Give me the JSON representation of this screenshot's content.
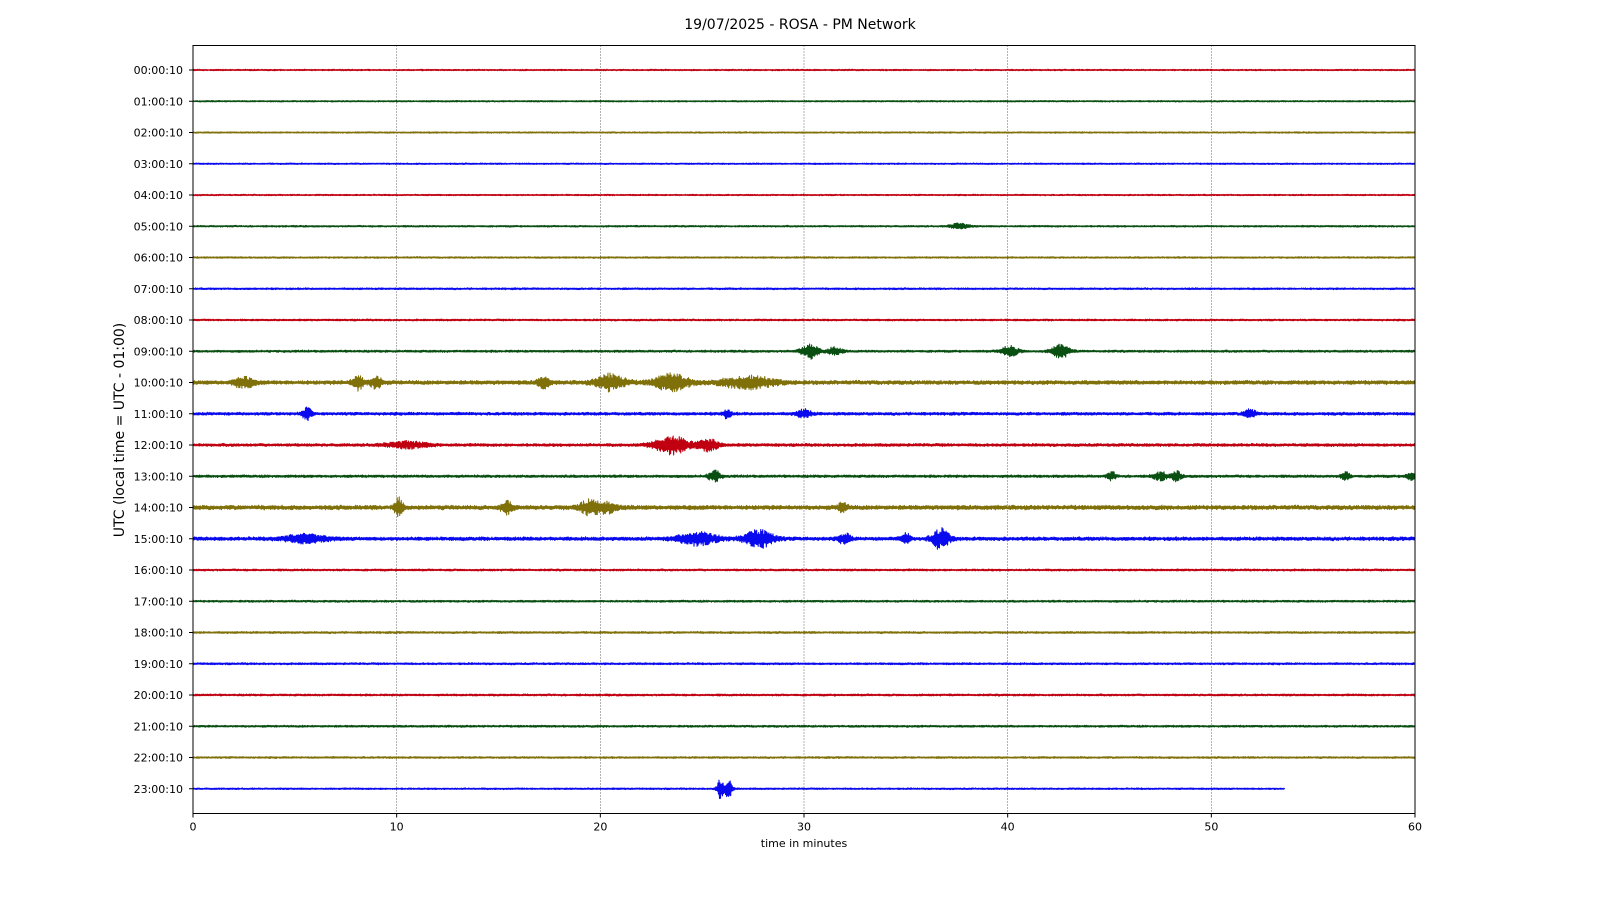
{
  "chart_data": {
    "type": "line",
    "title": "19/07/2025 - ROSA - PM Network",
    "xlabel": "time in minutes",
    "ylabel": "UTC (local time = UTC - 01:00)",
    "xlim": [
      0,
      60
    ],
    "xticks": [
      0,
      10,
      20,
      30,
      40,
      50,
      60
    ],
    "grid": "vertical dotted lines at x ticks",
    "colors": [
      "#c00010",
      "#0a4f12",
      "#80700a",
      "#0a0aee"
    ],
    "rows": [
      {
        "label": "00:00:10",
        "end": 60,
        "noise": 0.8,
        "events": []
      },
      {
        "label": "01:00:10",
        "end": 60,
        "noise": 0.8,
        "events": []
      },
      {
        "label": "02:00:10",
        "end": 60,
        "noise": 0.8,
        "events": []
      },
      {
        "label": "03:00:10",
        "end": 60,
        "noise": 0.8,
        "events": []
      },
      {
        "label": "04:00:10",
        "end": 60,
        "noise": 0.8,
        "events": []
      },
      {
        "label": "05:00:10",
        "end": 60,
        "noise": 0.9,
        "events": [
          {
            "t": 37.6,
            "amp": 3,
            "dur": 0.6
          }
        ]
      },
      {
        "label": "06:00:10",
        "end": 60,
        "noise": 0.9,
        "events": []
      },
      {
        "label": "07:00:10",
        "end": 60,
        "noise": 1.0,
        "events": []
      },
      {
        "label": "08:00:10",
        "end": 60,
        "noise": 1.0,
        "events": []
      },
      {
        "label": "09:00:10",
        "end": 60,
        "noise": 1.2,
        "events": [
          {
            "t": 30.3,
            "amp": 7,
            "dur": 0.6
          },
          {
            "t": 31.5,
            "amp": 4,
            "dur": 0.5
          },
          {
            "t": 40.1,
            "amp": 5,
            "dur": 0.6
          },
          {
            "t": 42.6,
            "amp": 7,
            "dur": 0.6
          }
        ]
      },
      {
        "label": "10:00:10",
        "end": 60,
        "noise": 2.2,
        "events": [
          {
            "t": 2.5,
            "amp": 5,
            "dur": 0.7
          },
          {
            "t": 8.1,
            "amp": 7,
            "dur": 0.4
          },
          {
            "t": 9.0,
            "amp": 6,
            "dur": 0.4
          },
          {
            "t": 17.2,
            "amp": 6,
            "dur": 0.4
          },
          {
            "t": 20.5,
            "amp": 8,
            "dur": 1.0
          },
          {
            "t": 23.5,
            "amp": 8,
            "dur": 1.2
          },
          {
            "t": 27.3,
            "amp": 6,
            "dur": 1.8
          }
        ]
      },
      {
        "label": "11:00:10",
        "end": 60,
        "noise": 1.6,
        "events": [
          {
            "t": 5.6,
            "amp": 7,
            "dur": 0.3
          },
          {
            "t": 26.2,
            "amp": 4,
            "dur": 0.3
          },
          {
            "t": 30.0,
            "amp": 4,
            "dur": 0.5
          },
          {
            "t": 51.9,
            "amp": 5,
            "dur": 0.4
          }
        ]
      },
      {
        "label": "12:00:10",
        "end": 60,
        "noise": 1.6,
        "events": [
          {
            "t": 10.5,
            "amp": 3,
            "dur": 1.5
          },
          {
            "t": 23.5,
            "amp": 9,
            "dur": 1.2
          },
          {
            "t": 25.3,
            "amp": 6,
            "dur": 0.7
          }
        ]
      },
      {
        "label": "13:00:10",
        "end": 60,
        "noise": 1.4,
        "events": [
          {
            "t": 25.6,
            "amp": 6,
            "dur": 0.4
          },
          {
            "t": 45.1,
            "amp": 4,
            "dur": 0.3
          },
          {
            "t": 47.5,
            "amp": 4,
            "dur": 0.5
          },
          {
            "t": 48.3,
            "amp": 5,
            "dur": 0.3
          },
          {
            "t": 56.6,
            "amp": 4,
            "dur": 0.3
          },
          {
            "t": 59.8,
            "amp": 4,
            "dur": 0.3
          }
        ]
      },
      {
        "label": "14:00:10",
        "end": 60,
        "noise": 2.4,
        "events": [
          {
            "t": 10.1,
            "amp": 9,
            "dur": 0.3
          },
          {
            "t": 15.4,
            "amp": 6,
            "dur": 0.4
          },
          {
            "t": 19.5,
            "amp": 7,
            "dur": 0.7
          },
          {
            "t": 20.4,
            "amp": 5,
            "dur": 0.6
          },
          {
            "t": 31.9,
            "amp": 5,
            "dur": 0.3
          }
        ]
      },
      {
        "label": "15:00:10",
        "end": 60,
        "noise": 2.0,
        "events": [
          {
            "t": 5.5,
            "amp": 4,
            "dur": 1.5
          },
          {
            "t": 24.8,
            "amp": 6,
            "dur": 1.4
          },
          {
            "t": 27.8,
            "amp": 9,
            "dur": 1.0
          },
          {
            "t": 32.0,
            "amp": 5,
            "dur": 0.4
          },
          {
            "t": 35.0,
            "amp": 5,
            "dur": 0.3
          },
          {
            "t": 36.7,
            "amp": 10,
            "dur": 0.6
          }
        ]
      },
      {
        "label": "16:00:10",
        "end": 60,
        "noise": 1.1,
        "events": []
      },
      {
        "label": "17:00:10",
        "end": 60,
        "noise": 1.1,
        "events": []
      },
      {
        "label": "18:00:10",
        "end": 60,
        "noise": 1.1,
        "events": []
      },
      {
        "label": "19:00:10",
        "end": 60,
        "noise": 1.1,
        "events": []
      },
      {
        "label": "20:00:10",
        "end": 60,
        "noise": 1.1,
        "events": []
      },
      {
        "label": "21:00:10",
        "end": 60,
        "noise": 1.1,
        "events": []
      },
      {
        "label": "22:00:10",
        "end": 60,
        "noise": 1.0,
        "events": []
      },
      {
        "label": "23:00:10",
        "end": 53.6,
        "noise": 0.9,
        "events": [
          {
            "t": 25.9,
            "amp": 10,
            "dur": 0.25
          },
          {
            "t": 26.3,
            "amp": 9,
            "dur": 0.25
          }
        ]
      }
    ]
  }
}
